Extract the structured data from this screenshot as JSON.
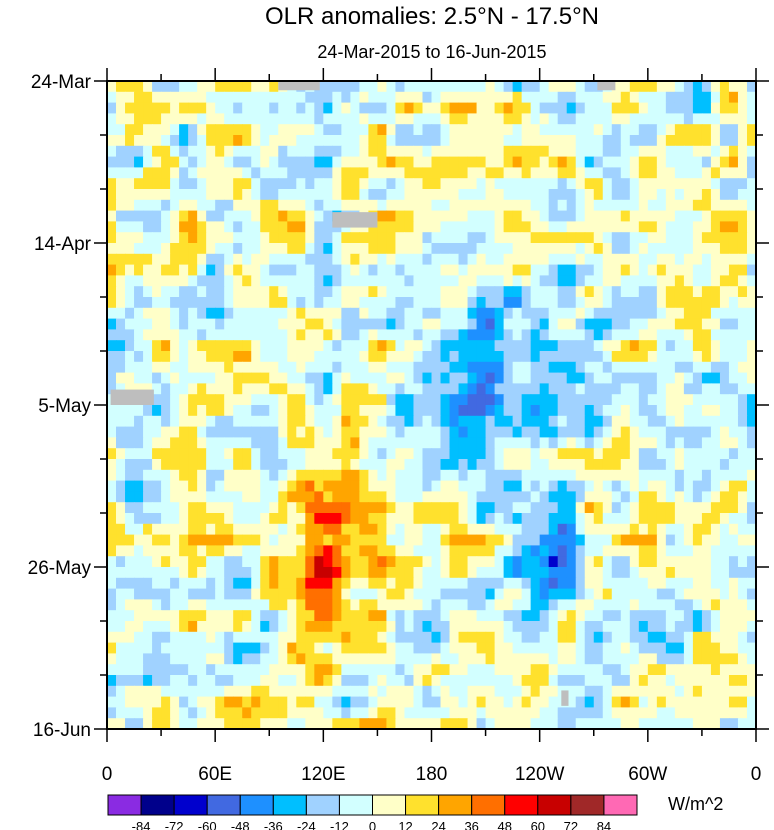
{
  "chart_data": {
    "type": "heatmap",
    "title": "OLR anomalies: 2.5°N - 17.5°N",
    "subtitle": "24-Mar-2015 to 16-Jun-2015",
    "xlabel": "",
    "ylabel": "",
    "x_ticks": [
      {
        "label": "0",
        "lon": 0
      },
      {
        "label": "60E",
        "lon": 60
      },
      {
        "label": "120E",
        "lon": 120
      },
      {
        "label": "180",
        "lon": 180
      },
      {
        "label": "120W",
        "lon": 240
      },
      {
        "label": "60W",
        "lon": 300
      },
      {
        "label": "0",
        "lon": 360
      }
    ],
    "xlim": [
      0,
      360
    ],
    "y_ticks": [
      {
        "label": "24-Mar",
        "day": 0
      },
      {
        "label": "14-Apr",
        "day": 21
      },
      {
        "label": "5-May",
        "day": 42
      },
      {
        "label": "26-May",
        "day": 63
      },
      {
        "label": "16-Jun",
        "day": 84
      }
    ],
    "ylim_days": [
      0,
      84
    ],
    "colorbar": {
      "units": "W/m^2",
      "levels": [
        "-84",
        "-72",
        "-60",
        "-48",
        "-36",
        "-24",
        "-12",
        "0",
        "12",
        "24",
        "36",
        "48",
        "60",
        "72",
        "84"
      ],
      "colors": [
        "#8a2be2",
        "#00008b",
        "#0000cd",
        "#4169e1",
        "#1e90ff",
        "#00bfff",
        "#a0d2ff",
        "#d2ffff",
        "#ffffc8",
        "#ffe12d",
        "#ffa500",
        "#ff6f00",
        "#ff0000",
        "#c80000",
        "#a02828",
        "#ff69b4"
      ]
    },
    "features": [
      {
        "name": "warm-anomaly-120E",
        "lon_range": [
          95,
          150
        ],
        "day_range": [
          45,
          80
        ],
        "value": 40
      },
      {
        "name": "cold-anomaly-east-pacific",
        "lon_range": [
          220,
          265
        ],
        "day_range": [
          55,
          70
        ],
        "value": -60
      },
      {
        "name": "cold-band-central-pacific",
        "lon_range": [
          160,
          250
        ],
        "day_range": [
          25,
          50
        ],
        "value": -45
      }
    ]
  }
}
